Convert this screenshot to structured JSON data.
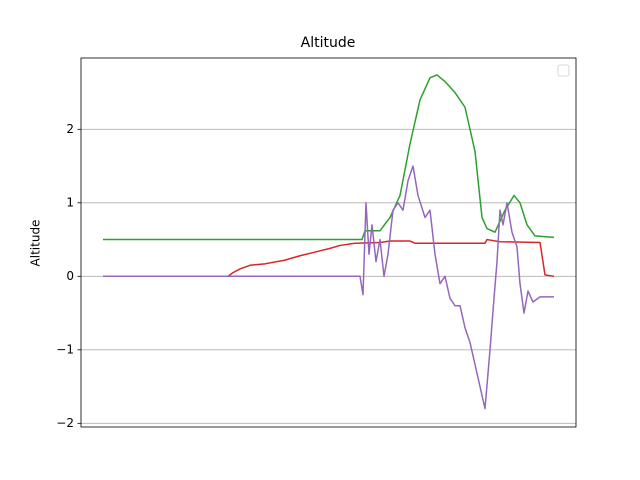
{
  "chart_data": {
    "type": "line",
    "title": "Altitude",
    "ylabel": "Altitude",
    "xlim": [
      -22,
      473
    ],
    "ylim": [
      -2.05,
      2.97
    ],
    "yticks": [
      {
        "value": -2,
        "label": "−2"
      },
      {
        "value": -1,
        "label": "−1"
      },
      0,
      1,
      2
    ],
    "grid": "y",
    "legend": "upper right",
    "series": [
      {
        "color": "#2ca02c",
        "x": [
          0,
          259,
          262,
          277,
          287,
          297,
          307,
          317,
          327,
          334,
          342,
          352,
          362,
          372,
          379,
          384,
          392,
          402,
          411,
          417,
          424,
          432,
          451
        ],
        "values": [
          0.5,
          0.5,
          0.62,
          0.62,
          0.8,
          1.1,
          1.8,
          2.4,
          2.7,
          2.74,
          2.65,
          2.5,
          2.3,
          1.7,
          0.8,
          0.65,
          0.6,
          0.9,
          1.1,
          1.0,
          0.7,
          0.55,
          0.53
        ]
      },
      {
        "color": "#d62728",
        "x": [
          0,
          125,
          130,
          137,
          147,
          162,
          182,
          197,
          212,
          227,
          237,
          252,
          277,
          287,
          307,
          312,
          382,
          384,
          397,
          437,
          442,
          451
        ],
        "values": [
          0,
          0,
          0.05,
          0.1,
          0.15,
          0.17,
          0.22,
          0.28,
          0.33,
          0.38,
          0.42,
          0.45,
          0.46,
          0.48,
          0.48,
          0.45,
          0.45,
          0.5,
          0.47,
          0.46,
          0.02,
          0.0
        ]
      },
      {
        "color": "#9467bd",
        "x": [
          0,
          257,
          260,
          263,
          266,
          269,
          273,
          277,
          281,
          285,
          290,
          295,
          300,
          305,
          310,
          315,
          322,
          327,
          332,
          337,
          342,
          347,
          352,
          357,
          362,
          367,
          372,
          377,
          382,
          387,
          391,
          394,
          397,
          400,
          404,
          409,
          414,
          417,
          421,
          425,
          430,
          437,
          451
        ],
        "values": [
          0,
          0,
          -0.25,
          1.0,
          0.3,
          0.7,
          0.2,
          0.5,
          0,
          0.3,
          0.9,
          1.0,
          0.9,
          1.3,
          1.5,
          1.1,
          0.8,
          0.9,
          0.3,
          -0.1,
          0,
          -0.3,
          -0.4,
          -0.4,
          -0.7,
          -0.9,
          -1.2,
          -1.5,
          -1.8,
          -1.0,
          -0.3,
          0.2,
          0.9,
          0.7,
          1.0,
          0.6,
          0.4,
          -0.1,
          -0.5,
          -0.2,
          -0.35,
          -0.28,
          -0.28
        ]
      }
    ]
  }
}
